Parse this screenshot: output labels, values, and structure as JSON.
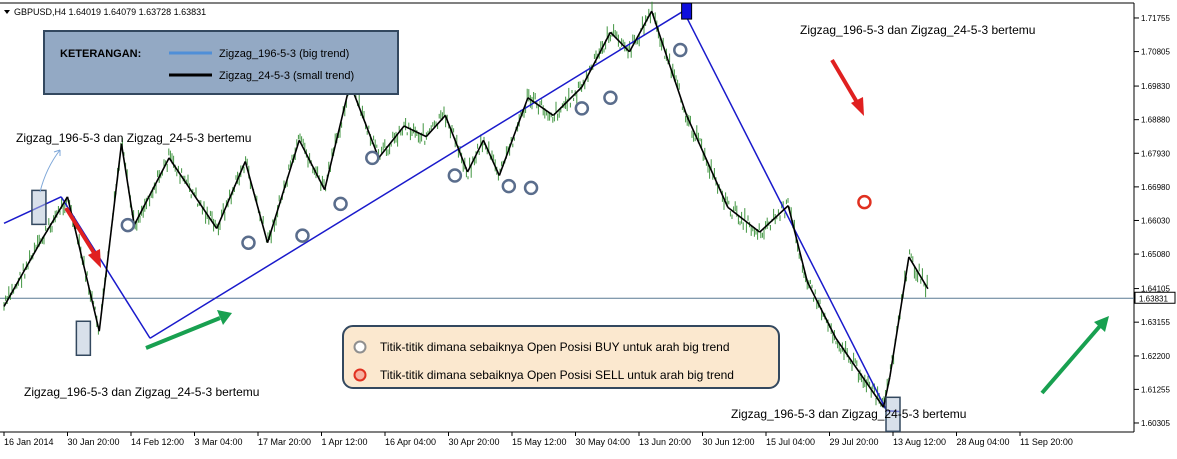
{
  "header": {
    "symbol_line": "GBPUSD,H4  1.64019 1.64079 1.63728 1.63831"
  },
  "legend": {
    "title": "KETERANGAN:",
    "items": [
      {
        "label": "Zigzag_196-5-3 (big trend)",
        "color": "#4f8fd8"
      },
      {
        "label": "Zigzag_24-5-3 (small trend)",
        "color": "#000000"
      }
    ]
  },
  "annotations": {
    "meet_top_left": "Zigzag_196-5-3 dan Zigzag_24-5-3 bertemu",
    "meet_bottom_left": "Zigzag_196-5-3 dan Zigzag_24-5-3 bertemu",
    "meet_top_right": "Zigzag_196-5-3 dan Zigzag_24-5-3 bertemu",
    "meet_bottom_right": "Zigzag_196-5-3 dan Zigzag_24-5-3 bertemu"
  },
  "info_box": {
    "buy_text": "Titik-titik dimana sebaiknya Open Posisi BUY untuk arah big trend",
    "sell_text": "Titik-titik dimana sebaiknya Open Posisi SELL untuk arah big trend",
    "buy_marker_color": "#5a6d8c",
    "sell_marker_color": "#e03020"
  },
  "colors": {
    "big_trend": "#1a1acc",
    "small_trend": "#000000",
    "candles": "#2e8b2e",
    "arrow_red": "#e02020",
    "arrow_green": "#18a050",
    "marker_blue": "#5a6d8c",
    "marker_red": "#e03020"
  },
  "chart_data": {
    "type": "line",
    "title": "GBPUSD,H4",
    "ohlc": {
      "open": 1.64019,
      "high": 1.64079,
      "low": 1.63728,
      "close": 1.63831
    },
    "current_price": "1.63831",
    "y_ticks": [
      "1.71755",
      "1.70805",
      "1.69830",
      "1.68880",
      "1.67930",
      "1.66980",
      "1.66030",
      "1.65080",
      "1.64105",
      "1.63155",
      "1.62200",
      "1.61255",
      "1.60305"
    ],
    "x_ticks": [
      "16 Jan 2014",
      "30 Jan 20:00",
      "14 Feb 12:00",
      "3 Mar 04:00",
      "17 Mar 20:00",
      "1 Apr 12:00",
      "16 Apr 04:00",
      "30 Apr 20:00",
      "15 May 12:00",
      "30 May 04:00",
      "13 Jun 20:00",
      "30 Jun 12:00",
      "15 Jul 04:00",
      "29 Jul 20:00",
      "13 Aug 12:00",
      "28 Aug 04:00",
      "11 Sep 20:00"
    ],
    "ylim": [
      1.6005,
      1.7215
    ],
    "series": [
      {
        "name": "Zigzag_196-5-3 (big trend)",
        "x": [
          0,
          0.9,
          2.3,
          10.7,
          13.9,
          14.1
        ],
        "y": [
          1.6595,
          1.667,
          1.627,
          1.7195,
          1.6065,
          1.6063
        ]
      },
      {
        "name": "Zigzag_24-5-3 (small trend)",
        "x": [
          0,
          0.6,
          1.0,
          1.5,
          1.85,
          2.05,
          2.6,
          3.35,
          3.8,
          4.15,
          4.65,
          5.05,
          5.45,
          5.9,
          6.3,
          6.65,
          6.95,
          7.3,
          7.55,
          7.8,
          8.25,
          8.65,
          9.1,
          9.55,
          9.85,
          10.2,
          10.45,
          10.75,
          11.4,
          11.9,
          12.35,
          12.65,
          13.1,
          13.85,
          13.95,
          14.25,
          14.55
        ],
        "y": [
          1.636,
          1.655,
          1.667,
          1.629,
          1.682,
          1.659,
          1.678,
          1.658,
          1.677,
          1.654,
          1.683,
          1.669,
          1.699,
          1.678,
          1.687,
          1.684,
          1.69,
          1.674,
          1.683,
          1.673,
          1.695,
          1.69,
          1.698,
          1.7135,
          1.708,
          1.7195,
          1.706,
          1.69,
          1.664,
          1.657,
          1.6645,
          1.643,
          1.627,
          1.6075,
          1.616,
          1.65,
          1.641
        ]
      }
    ],
    "buy_points": [
      {
        "x": 1.95,
        "y": 1.659
      },
      {
        "x": 3.85,
        "y": 1.654
      },
      {
        "x": 4.7,
        "y": 1.656
      },
      {
        "x": 5.3,
        "y": 1.665
      },
      {
        "x": 5.8,
        "y": 1.678
      },
      {
        "x": 7.1,
        "y": 1.673
      },
      {
        "x": 7.95,
        "y": 1.67
      },
      {
        "x": 8.3,
        "y": 1.6695
      },
      {
        "x": 9.1,
        "y": 1.692
      },
      {
        "x": 9.55,
        "y": 1.695
      },
      {
        "x": 10.65,
        "y": 1.7085
      }
    ],
    "sell_points": [
      {
        "x": 13.55,
        "y": 1.6655
      }
    ],
    "meet_points": [
      {
        "x": 0.55,
        "y": 1.664
      },
      {
        "x": 1.25,
        "y": 1.627
      },
      {
        "x": 10.75,
        "y": 1.7195
      },
      {
        "x": 14.0,
        "y": 1.6055
      }
    ],
    "xlabel": "",
    "ylabel": "",
    "grid": false,
    "legend": "top-left"
  }
}
